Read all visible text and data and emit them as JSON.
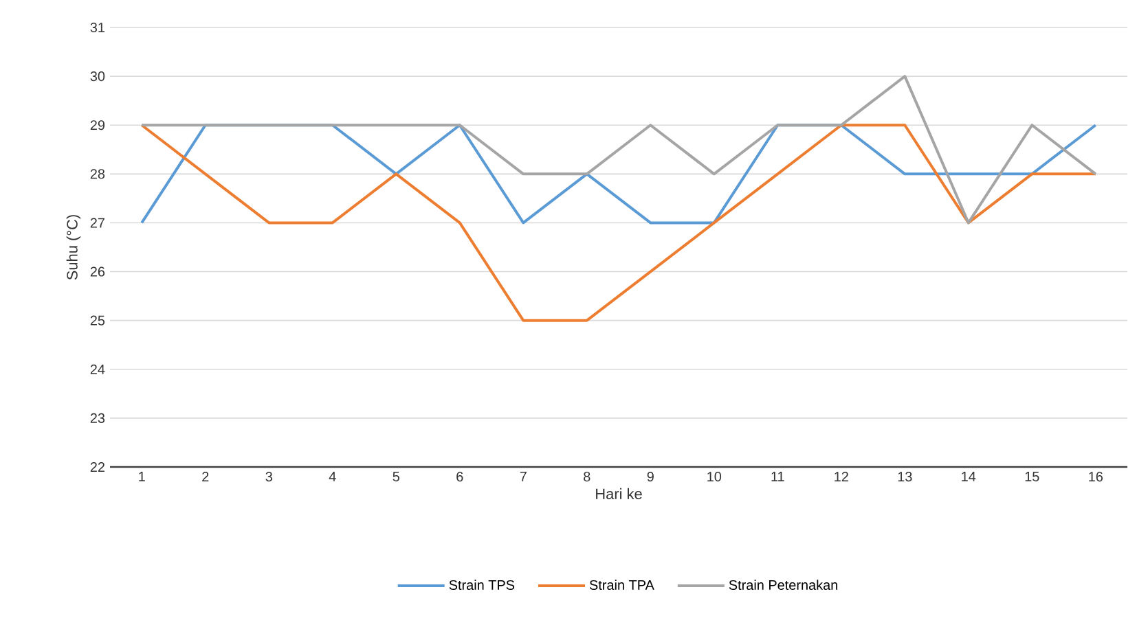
{
  "chart_data": {
    "type": "line",
    "xlabel": "Hari ke",
    "ylabel": "Suhu (°C)",
    "categories": [
      "1",
      "2",
      "3",
      "4",
      "5",
      "6",
      "7",
      "8",
      "9",
      "10",
      "11",
      "12",
      "13",
      "14",
      "15",
      "16"
    ],
    "ylim": [
      22,
      31
    ],
    "yticks": [
      22,
      23,
      24,
      25,
      26,
      27,
      28,
      29,
      30,
      31
    ],
    "grid": "y",
    "legend": "bottom",
    "marker": "none",
    "line_style": "solid",
    "series": [
      {
        "name": "Strain TPS",
        "color": "#5b9bd5",
        "values": [
          27,
          29,
          29,
          29,
          28,
          29,
          27,
          28,
          27,
          27,
          29,
          29,
          28,
          28,
          28,
          29
        ]
      },
      {
        "name": "Strain TPA",
        "color": "#ed7d31",
        "values": [
          29,
          28,
          27,
          27,
          28,
          27,
          25,
          25,
          26,
          27,
          28,
          29,
          29,
          27,
          28,
          28
        ]
      },
      {
        "name": "Strain Peternakan",
        "color": "#a5a5a5",
        "values": [
          29,
          29,
          29,
          29,
          29,
          29,
          28,
          28,
          29,
          28,
          29,
          29,
          30,
          27,
          29,
          28
        ]
      }
    ]
  }
}
